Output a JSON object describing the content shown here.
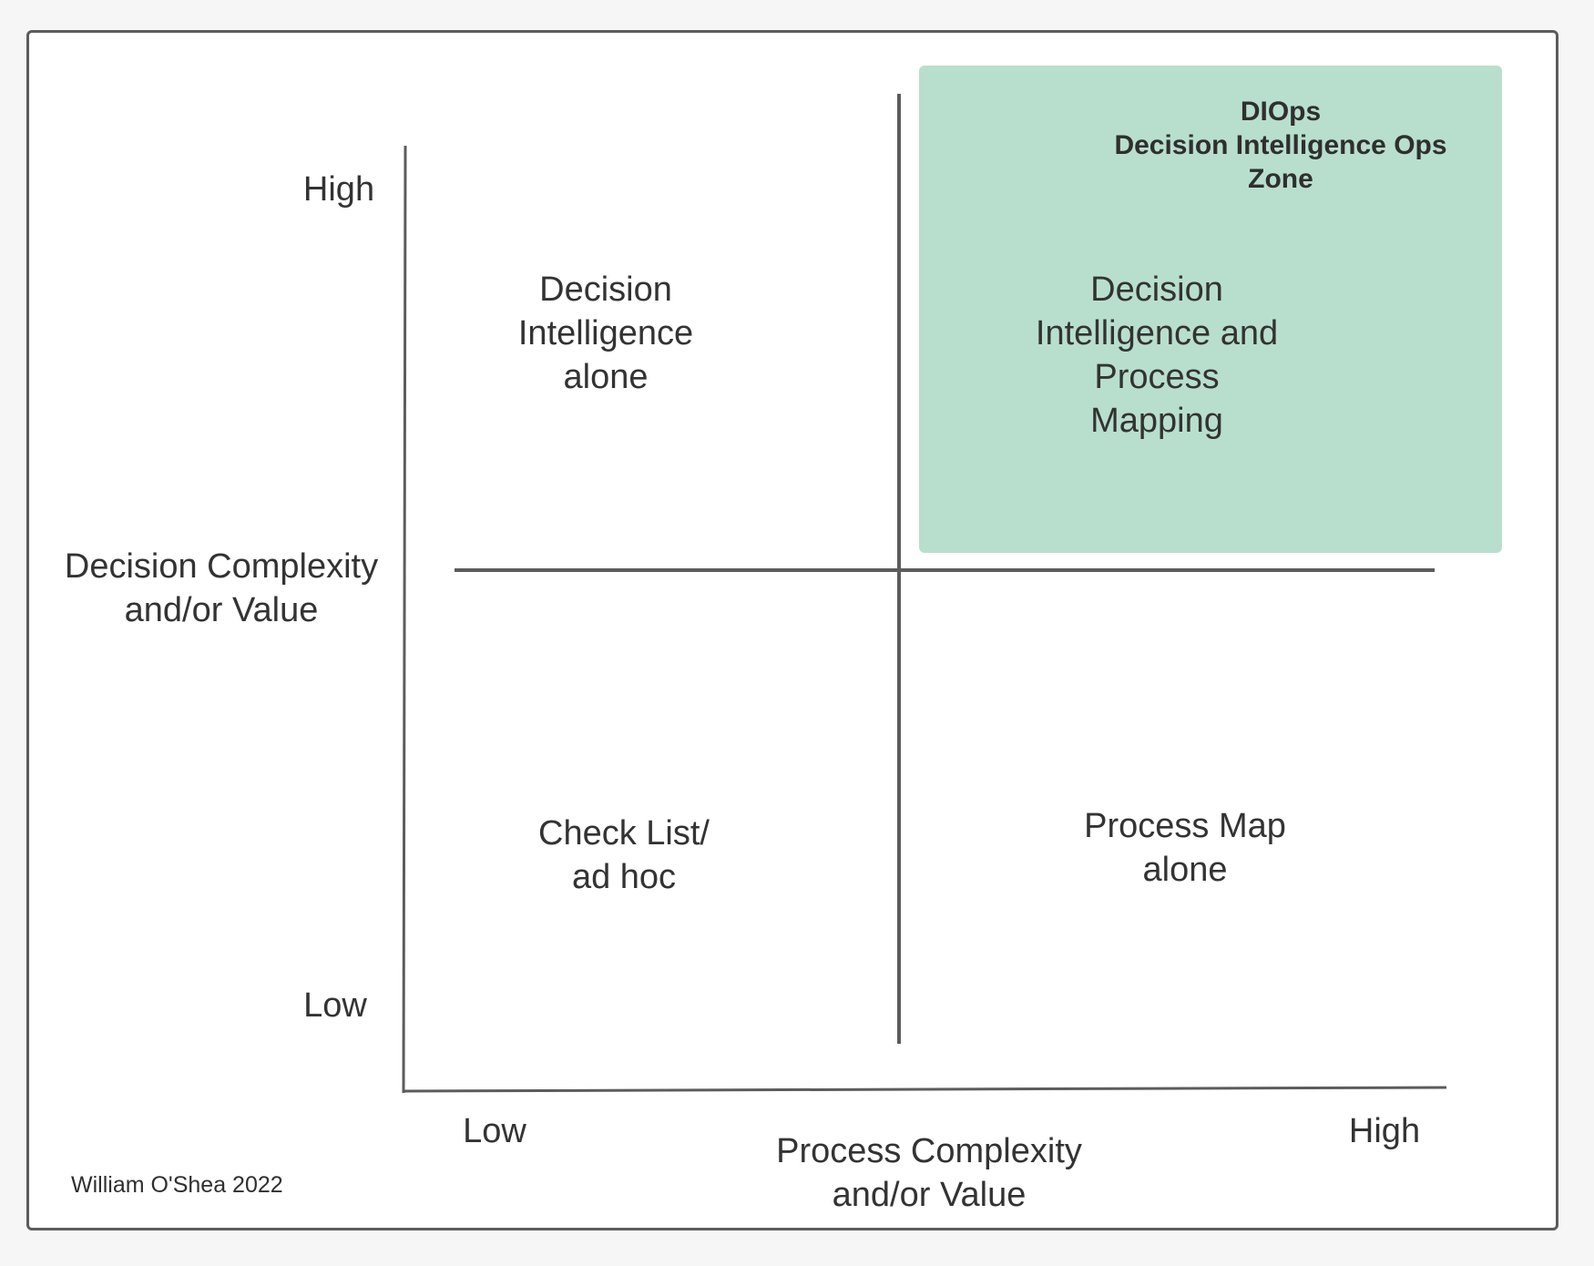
{
  "diagram": {
    "zone_title": "DIOps\nDecision Intelligence Ops\nZone",
    "zone_color": "#b8dfcd",
    "quadrants": {
      "top_left": "Decision\nIntelligence\nalone",
      "top_right": "Decision\nIntelligence and\nProcess\nMapping",
      "bottom_left": "Check List/\nad hoc",
      "bottom_right": "Process Map\nalone"
    },
    "y_axis": {
      "title": "Decision Complexity\nand/or Value",
      "high": "High",
      "low": "Low"
    },
    "x_axis": {
      "title": "Process Complexity\nand/or Value",
      "low": "Low",
      "high": "High"
    },
    "credit": "William O'Shea 2022",
    "line_color": "#5c5c5c"
  }
}
